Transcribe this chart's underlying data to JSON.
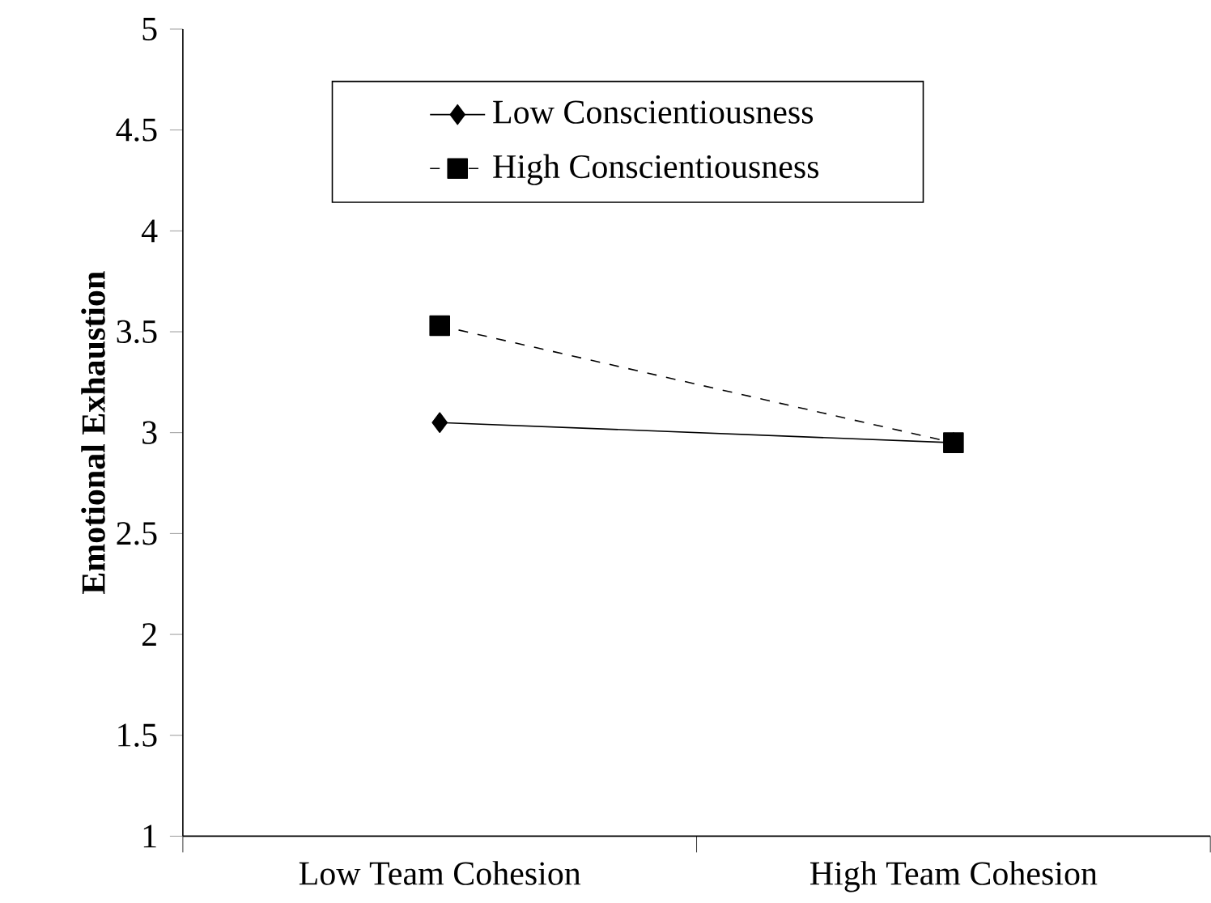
{
  "chart_data": {
    "type": "line",
    "ylabel": "Emotional Exhaustion",
    "categories": [
      "Low Team Cohesion",
      "High Team Cohesion"
    ],
    "series": [
      {
        "name": "Low Conscientiousness",
        "color": "#000000",
        "values": [
          3.05,
          2.95
        ],
        "marker": "diamond",
        "line_style": "solid"
      },
      {
        "name": "High Conscientiousness",
        "color": "#000000",
        "values": [
          3.53,
          2.95
        ],
        "marker": "square",
        "line_style": "dashed"
      }
    ],
    "ylim": [
      1,
      5
    ],
    "yticks": [
      1,
      1.5,
      2,
      2.5,
      3,
      3.5,
      4,
      4.5,
      5
    ],
    "grid": false,
    "legend": "top"
  }
}
